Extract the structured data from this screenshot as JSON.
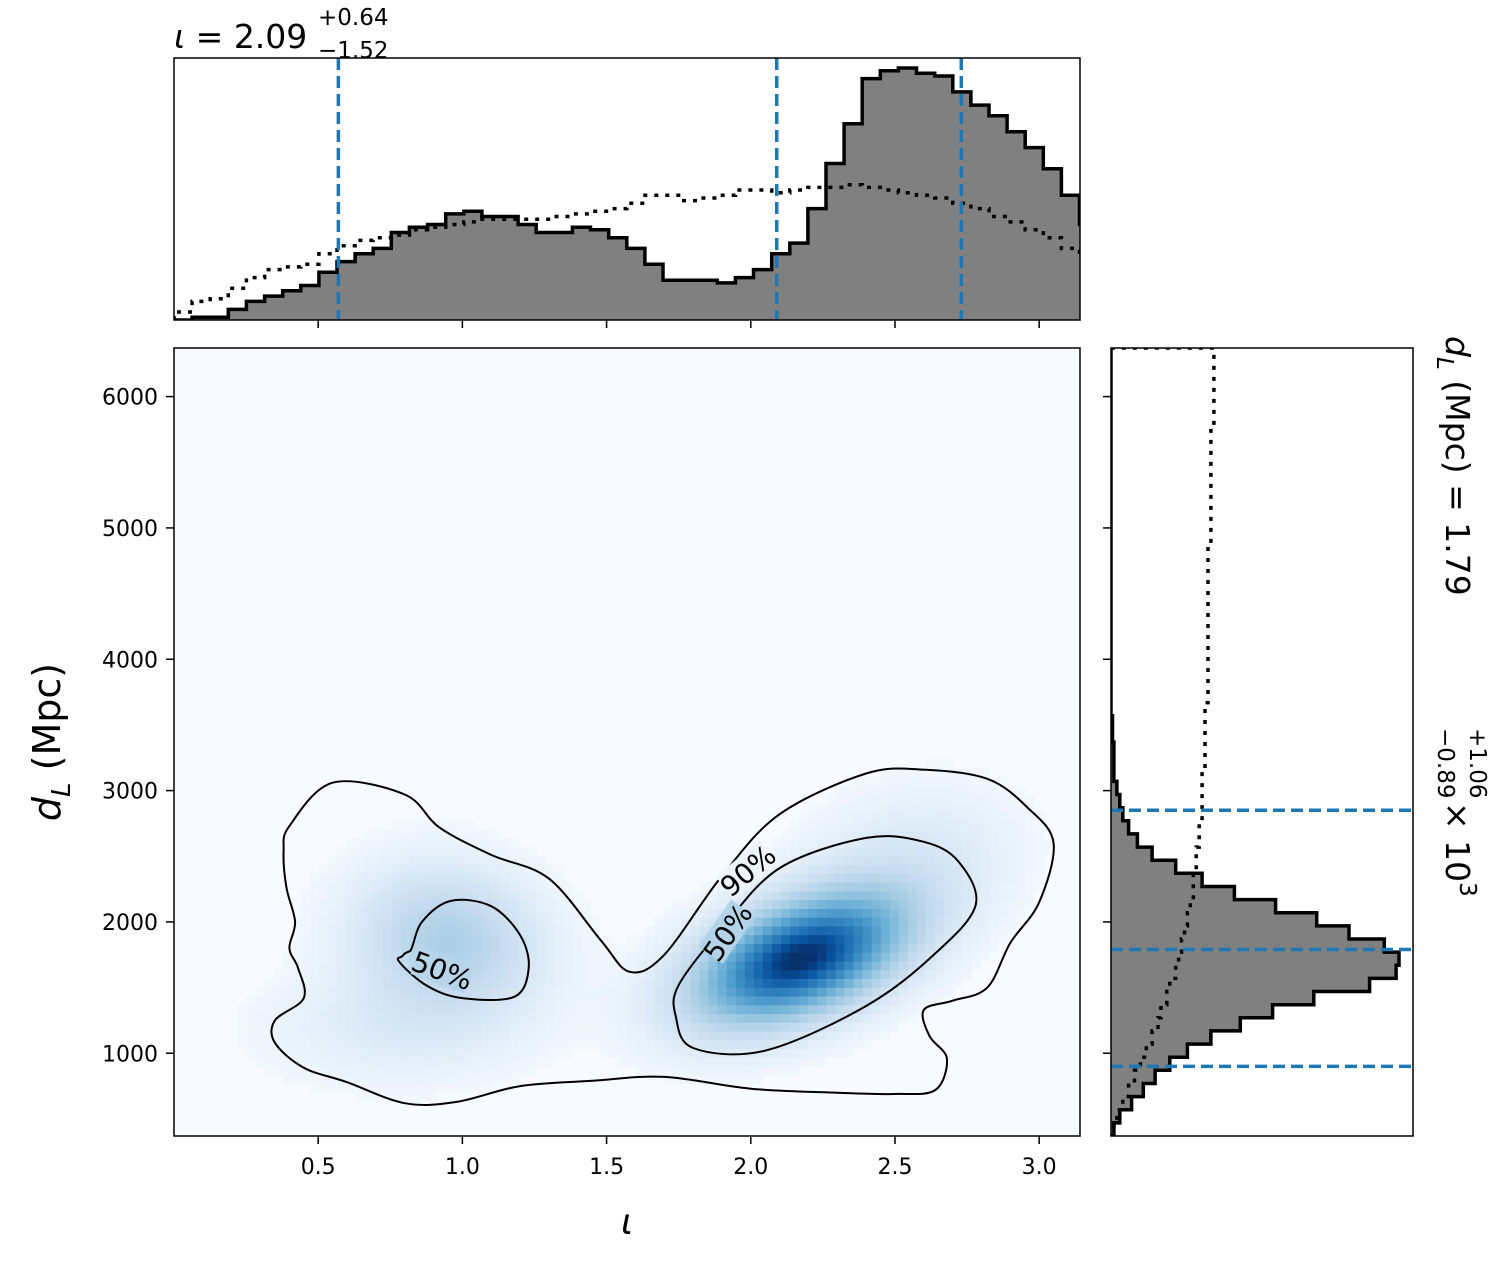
{
  "chart_data": {
    "type": "corner",
    "top_title": {
      "symbol": "ι",
      "equals": " = ",
      "median": "2.09",
      "plus": "+0.64",
      "minus": "−1.52"
    },
    "right_title": {
      "symbol": "d",
      "subscript": "L",
      "unit": " (Mpc) = ",
      "median": "1.79",
      "plus": "+1.06",
      "minus": "−0.89",
      "scale": " × 10",
      "scale_exp": "3"
    },
    "xlabel": "ι",
    "ylabel": {
      "symbol": "d",
      "subscript": "L",
      "unit": " (Mpc)"
    },
    "xlim": [
      0.0,
      3.14159
    ],
    "ylim": [
      370,
      6370
    ],
    "xticks": [
      0.5,
      1.0,
      1.5,
      2.0,
      2.5,
      3.0
    ],
    "xtick_labels": [
      "0.5",
      "1.0",
      "1.5",
      "2.0",
      "2.5",
      "3.0"
    ],
    "yticks": [
      1000,
      2000,
      3000,
      4000,
      5000,
      6000
    ],
    "ytick_labels": [
      "1000",
      "2000",
      "3000",
      "4000",
      "5000",
      "6000"
    ],
    "colors": {
      "posterior_fill": "#808080",
      "posterior_edge": "#000000",
      "quantile_line": "#1f77b4",
      "density_low": "#f7fbff",
      "density_high": "#08306b",
      "contour": "#000000"
    },
    "iota_histogram": {
      "x_start": 0.0,
      "bin_width": 0.0628,
      "posterior_counts": [
        0,
        1,
        1,
        4,
        7,
        9,
        11,
        13,
        18,
        22,
        25,
        27,
        33,
        35,
        36,
        40,
        41,
        39,
        39,
        36,
        33,
        33,
        35,
        34,
        31,
        27,
        21,
        15,
        15,
        15,
        14,
        16,
        19,
        25,
        29,
        42,
        59,
        74,
        91,
        94,
        95,
        93,
        92,
        86,
        81,
        77,
        71,
        65,
        57,
        47,
        36,
        28,
        19,
        13,
        9,
        6,
        5,
        4,
        1,
        0
      ],
      "prior_counts": [
        3,
        7,
        8,
        12,
        16,
        19,
        20,
        21,
        25,
        28,
        30,
        31,
        32,
        34,
        35,
        36,
        37,
        38,
        38,
        38,
        38,
        39,
        40,
        41,
        42,
        44,
        47,
        47,
        45,
        46,
        47,
        49,
        49,
        48,
        49,
        50,
        50,
        51,
        50,
        49,
        48,
        47,
        46,
        44,
        42,
        39,
        37,
        34,
        31,
        27,
        23,
        20,
        17,
        14,
        11,
        9,
        7,
        5,
        3,
        1
      ]
    },
    "dl_histogram": {
      "y_start": 370,
      "bin_width": 100,
      "posterior_counts": [
        1,
        3,
        7,
        11,
        15,
        20,
        26,
        34,
        44,
        55,
        69,
        88,
        97,
        98,
        93,
        81,
        70,
        56,
        42,
        31,
        22,
        14,
        9,
        6,
        4,
        3,
        2,
        1,
        1,
        1,
        0.5,
        0.5,
        0,
        0,
        0,
        0,
        0,
        0,
        0,
        0,
        0,
        0,
        0,
        0,
        0,
        0,
        0,
        0,
        0,
        0,
        0,
        0,
        0,
        0,
        0,
        0,
        0,
        0,
        0,
        0
      ],
      "prior_counts": [
        1,
        2,
        4,
        6,
        8,
        10,
        12,
        14,
        16,
        17,
        19,
        20,
        22,
        23,
        24,
        25,
        26,
        27,
        28,
        28,
        29,
        29,
        30,
        30,
        31,
        31,
        31,
        31,
        32,
        32,
        32,
        32,
        32,
        33,
        33,
        33,
        33,
        33,
        33,
        33,
        33,
        33,
        33,
        33,
        33,
        34,
        34,
        34,
        34,
        34,
        34,
        34,
        34,
        34,
        35,
        35,
        35,
        35,
        35,
        35
      ]
    },
    "iota_quantiles": [
      0.57,
      2.09,
      2.73
    ],
    "dl_quantiles": [
      900,
      1790,
      2850
    ],
    "density_peaks": [
      {
        "x": 2.17,
        "y": 1720,
        "weight": 1.0,
        "sx": 0.25,
        "sy": 340,
        "rho": 0.45
      },
      {
        "x": 0.95,
        "y": 1870,
        "weight": 0.33,
        "sx": 0.22,
        "sy": 380,
        "rho": -0.1
      },
      {
        "x": 0.75,
        "y": 1200,
        "weight": 0.1,
        "sx": 0.3,
        "sy": 300,
        "rho": 0.0
      },
      {
        "x": 2.55,
        "y": 2450,
        "weight": 0.12,
        "sx": 0.25,
        "sy": 400,
        "rho": 0.2
      }
    ],
    "contours": [
      {
        "label": "50%",
        "label_positions": [
          {
            "x": 0.93,
            "y": 1630,
            "angle": 20
          },
          {
            "x": 1.92,
            "y": 1920,
            "angle": -55
          }
        ],
        "paths": [
          [
            [
              0.82,
              1780
            ],
            [
              0.86,
              2000
            ],
            [
              0.96,
              2160
            ],
            [
              1.1,
              2120
            ],
            [
              1.2,
              1900
            ],
            [
              1.23,
              1650
            ],
            [
              1.18,
              1430
            ],
            [
              1.0,
              1420
            ],
            [
              0.88,
              1510
            ],
            [
              0.78,
              1700
            ],
            [
              0.8,
              1760
            ]
          ],
          [
            [
              1.75,
              1520
            ],
            [
              1.9,
              1950
            ],
            [
              2.1,
              2410
            ],
            [
              2.4,
              2640
            ],
            [
              2.6,
              2610
            ],
            [
              2.72,
              2460
            ],
            [
              2.78,
              2130
            ],
            [
              2.64,
              1760
            ],
            [
              2.4,
              1360
            ],
            [
              2.05,
              1020
            ],
            [
              1.8,
              1040
            ],
            [
              1.74,
              1280
            ],
            [
              1.75,
              1520
            ]
          ]
        ]
      },
      {
        "label": "90%",
        "label_positions": [
          {
            "x": 1.99,
            "y": 2390,
            "angle": -40
          }
        ],
        "paths": [
          [
            [
              0.55,
              3060
            ],
            [
              0.8,
              2970
            ],
            [
              0.92,
              2720
            ],
            [
              1.1,
              2510
            ],
            [
              1.3,
              2330
            ],
            [
              1.48,
              1860
            ],
            [
              1.58,
              1620
            ],
            [
              1.7,
              1750
            ],
            [
              1.9,
              2350
            ],
            [
              2.1,
              2820
            ],
            [
              2.4,
              3130
            ],
            [
              2.6,
              3160
            ],
            [
              2.82,
              3090
            ],
            [
              2.96,
              2870
            ],
            [
              3.05,
              2600
            ],
            [
              3.0,
              2150
            ],
            [
              2.9,
              1840
            ],
            [
              2.82,
              1500
            ],
            [
              2.7,
              1400
            ],
            [
              2.6,
              1330
            ],
            [
              2.62,
              1130
            ],
            [
              2.68,
              960
            ],
            [
              2.64,
              720
            ],
            [
              2.5,
              690
            ],
            [
              2.3,
              700
            ],
            [
              2.0,
              730
            ],
            [
              1.7,
              820
            ],
            [
              1.45,
              790
            ],
            [
              1.2,
              750
            ],
            [
              0.98,
              630
            ],
            [
              0.8,
              620
            ],
            [
              0.6,
              780
            ],
            [
              0.45,
              890
            ],
            [
              0.35,
              1080
            ],
            [
              0.35,
              1250
            ],
            [
              0.45,
              1420
            ],
            [
              0.43,
              1650
            ],
            [
              0.4,
              1800
            ],
            [
              0.42,
              2000
            ],
            [
              0.39,
              2260
            ],
            [
              0.38,
              2540
            ],
            [
              0.4,
              2730
            ],
            [
              0.55,
              3060
            ]
          ]
        ]
      }
    ]
  }
}
